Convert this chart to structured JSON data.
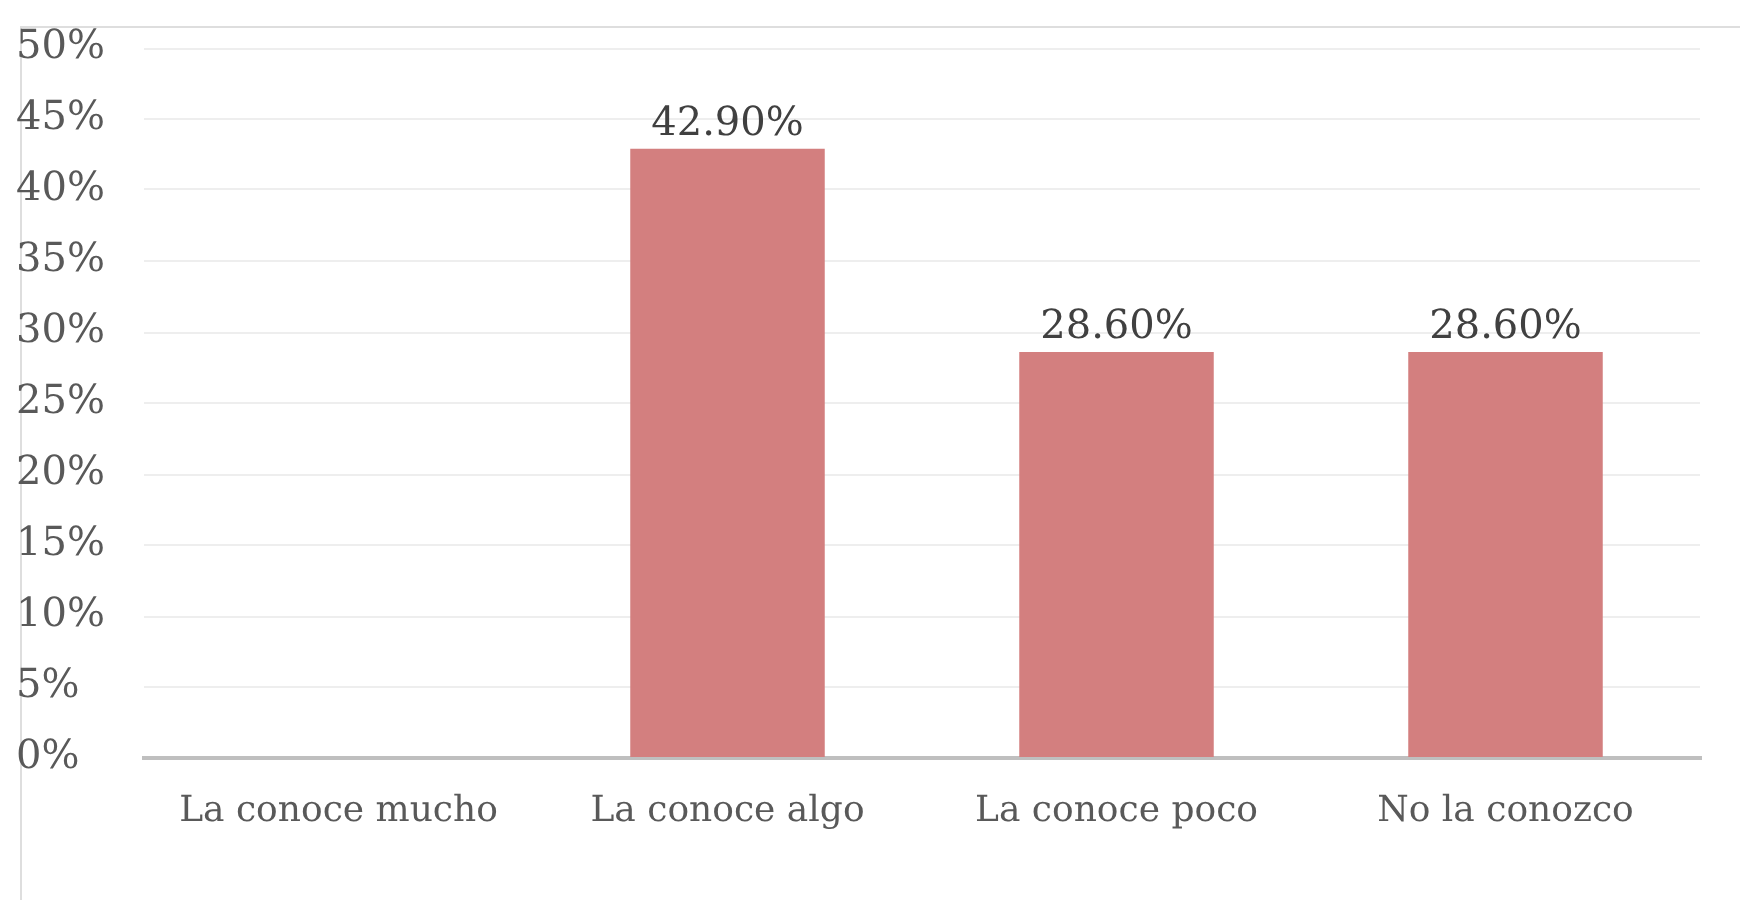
{
  "chart_data": {
    "type": "bar",
    "categories": [
      "La conoce mucho",
      "La conoce algo",
      "La conoce poco",
      "No la conozco"
    ],
    "values": [
      0,
      42.9,
      28.6,
      28.6
    ],
    "color": "#d37f7f",
    "value_labels": [
      null,
      "42.90%",
      "28.60%",
      "28.60%"
    ],
    "ylim": [
      0,
      50
    ],
    "yticks": [
      {
        "value": 0,
        "label": "0%"
      },
      {
        "value": 5,
        "label": "5%"
      },
      {
        "value": 10,
        "label": "10%"
      },
      {
        "value": 15,
        "label": "15%"
      },
      {
        "value": 20,
        "label": "20%"
      },
      {
        "value": 25,
        "label": "25%"
      },
      {
        "value": 30,
        "label": "30%"
      },
      {
        "value": 35,
        "label": "35%"
      },
      {
        "value": 40,
        "label": "40%"
      },
      {
        "value": 45,
        "label": "45%"
      },
      {
        "value": 50,
        "label": "50%"
      }
    ],
    "grid": "y"
  }
}
